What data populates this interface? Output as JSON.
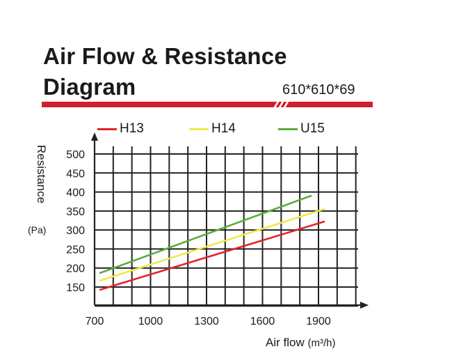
{
  "title_line1": "Air Flow & Resistance",
  "title_line2": "Diagram",
  "size_label": "610*610*69",
  "brand_color": "#d11f2b",
  "chart_data": {
    "type": "line",
    "ylabel": "Resistance",
    "yunit": "(Pa)",
    "xlabel": "Air flow",
    "xunit": "(m³/h)",
    "xticks": [
      700,
      1000,
      1300,
      1600,
      1900
    ],
    "yticks": [
      150,
      200,
      250,
      300,
      350,
      400,
      450,
      500
    ],
    "xlim": [
      700,
      1900
    ],
    "ylim": [
      150,
      500
    ],
    "grid": true,
    "legend_position": "top",
    "series": [
      {
        "name": "H13",
        "color": "#e1232c",
        "x": [
          730,
          1930
        ],
        "y": [
          143,
          322
        ]
      },
      {
        "name": "H14",
        "color": "#efe94a",
        "x": [
          730,
          1930
        ],
        "y": [
          167,
          355
        ]
      },
      {
        "name": "U15",
        "color": "#5aac3c",
        "x": [
          730,
          1860
        ],
        "y": [
          187,
          390
        ]
      }
    ]
  }
}
